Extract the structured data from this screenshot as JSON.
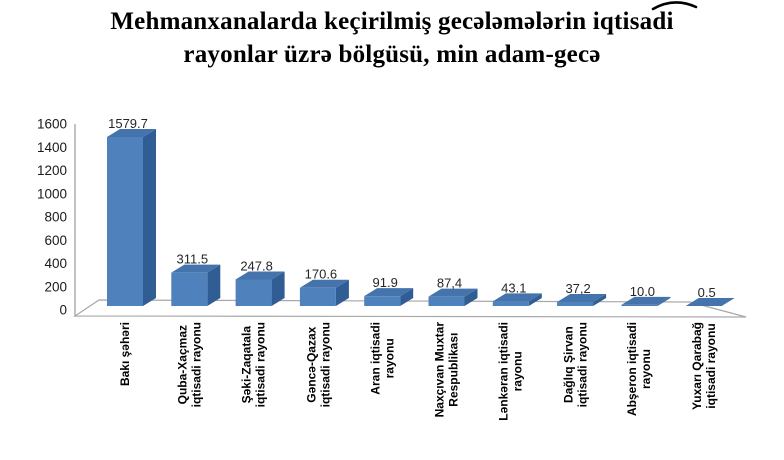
{
  "title": {
    "lines": [
      "Mehmanxanalarda keçirilmiş gecələmələrin iqtisadi",
      "rayonlar üzrə bölgüsü, min adam-gecə"
    ]
  },
  "chart_data": {
    "type": "bar",
    "style": "3d-column",
    "title": "Mehmanxanalarda keçirilmiş gecələmələrin iqtisadi rayonlar üzrə bölgüsü, min adam-gecə",
    "unit": "min adam-gecə",
    "categories": [
      "Bakı şəhəri",
      "Quba-Xaçmaz iqtisadi rayonu",
      "Şəki-Zaqatala iqtisadi rayonu",
      "Gəncə-Qazax iqtisadi rayonu",
      "Aran iqtisadi rayonu",
      "Naxçıvan Muxtar Respublikası",
      "Lənkəran iqtisadi rayonu",
      "Dağlıq Şirvan iqtisadi rayonu",
      "Abşeron iqtisadi rayonu",
      "Yuxarı Qarabağ iqtisadi rayonu"
    ],
    "category_display_lines": [
      [
        "Bakı şəhəri"
      ],
      [
        "Quba-Xaçmaz",
        "iqtisadi rayonu"
      ],
      [
        "Şəki-Zaqatala",
        "iqtisadi rayonu"
      ],
      [
        "Gəncə-Qazax",
        "iqtisadi rayonu"
      ],
      [
        "Aran iqtisadi",
        "rayonu"
      ],
      [
        "Naxçıvan Muxtar",
        "Respublikası"
      ],
      [
        "Lənkəran iqtisadi",
        "rayonu"
      ],
      [
        "Dağlıq Şirvan",
        "iqtisadi rayonu"
      ],
      [
        "Abşeron iqtisadi",
        "rayonu"
      ],
      [
        "Yuxarı Qarabağ",
        "iqtisadi rayonu"
      ]
    ],
    "values": [
      1579.7,
      311.5,
      247.8,
      170.6,
      91.9,
      87.4,
      43.1,
      37.2,
      10.0,
      0.5
    ],
    "value_labels": [
      "1579.7",
      "311.5",
      "247.8",
      "170.6",
      "91.9",
      "87,4",
      "43.1",
      "37,2",
      "10.0",
      "0.5"
    ],
    "ylim": [
      0,
      1600
    ],
    "ytick_step": 200,
    "yticks": [
      0,
      200,
      400,
      600,
      800,
      1000,
      1200,
      1400,
      1600
    ],
    "grid": "off",
    "legend": "none",
    "colors": {
      "bar_front": "#4f81bd",
      "bar_top": "#4474ab",
      "bar_side": "#305d94",
      "axis_line": "#a8a8a8",
      "value_label_text": "#262626",
      "tick_label_text": "#1a1a1a",
      "title_text": "#000000"
    }
  }
}
